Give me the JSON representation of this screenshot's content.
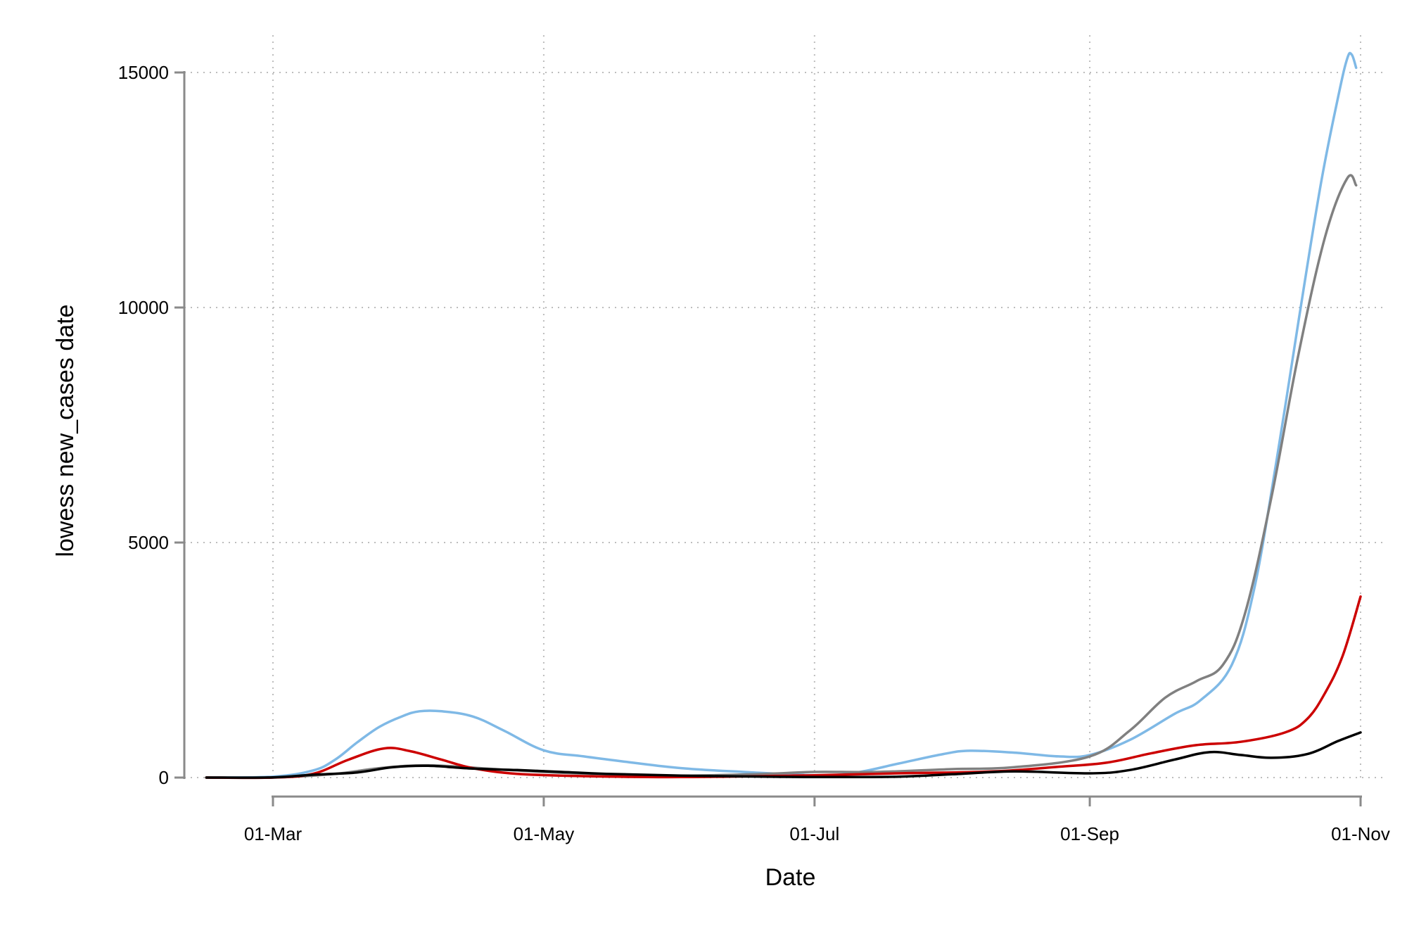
{
  "chart_data": {
    "type": "line",
    "title": "",
    "xlabel": "Date",
    "ylabel": "lowess new_cases date",
    "x_ticks": [
      {
        "date": "2020-03-01",
        "label": "01-Mar"
      },
      {
        "date": "2020-05-01",
        "label": "01-May"
      },
      {
        "date": "2020-07-01",
        "label": "01-Jul"
      },
      {
        "date": "2020-09-01",
        "label": "01-Sep"
      },
      {
        "date": "2020-11-01",
        "label": "01-Nov"
      }
    ],
    "y_ticks": [
      {
        "value": 0,
        "label": "0"
      },
      {
        "value": 5000,
        "label": "5000"
      },
      {
        "value": 10000,
        "label": "10000"
      },
      {
        "value": 15000,
        "label": "15000"
      }
    ],
    "xlim": [
      "2020-02-15",
      "2020-11-01"
    ],
    "ylim": [
      0,
      15000
    ],
    "grid": true,
    "legend": "none",
    "series": [
      {
        "color": "#7fb9e6",
        "points": [
          [
            "2020-02-15",
            0
          ],
          [
            "2020-03-01",
            20
          ],
          [
            "2020-03-10",
            150
          ],
          [
            "2020-03-15",
            380
          ],
          [
            "2020-03-20",
            750
          ],
          [
            "2020-03-25",
            1080
          ],
          [
            "2020-03-30",
            1300
          ],
          [
            "2020-04-03",
            1410
          ],
          [
            "2020-04-08",
            1410
          ],
          [
            "2020-04-15",
            1300
          ],
          [
            "2020-04-22",
            1000
          ],
          [
            "2020-05-01",
            580
          ],
          [
            "2020-05-10",
            450
          ],
          [
            "2020-05-20",
            330
          ],
          [
            "2020-06-01",
            200
          ],
          [
            "2020-06-15",
            120
          ],
          [
            "2020-07-01",
            50
          ],
          [
            "2020-07-10",
            100
          ],
          [
            "2020-07-20",
            300
          ],
          [
            "2020-07-30",
            500
          ],
          [
            "2020-08-05",
            570
          ],
          [
            "2020-08-15",
            530
          ],
          [
            "2020-08-25",
            450
          ],
          [
            "2020-09-01",
            480
          ],
          [
            "2020-09-10",
            800
          ],
          [
            "2020-09-20",
            1350
          ],
          [
            "2020-09-26",
            1650
          ],
          [
            "2020-10-03",
            2400
          ],
          [
            "2020-10-08",
            4000
          ],
          [
            "2020-10-13",
            6700
          ],
          [
            "2020-10-18",
            9700
          ],
          [
            "2020-10-23",
            12600
          ],
          [
            "2020-10-27",
            14500
          ],
          [
            "2020-10-29",
            15300
          ],
          [
            "2020-10-30",
            15380
          ],
          [
            "2020-10-31",
            15100
          ]
        ]
      },
      {
        "color": "#808080",
        "points": [
          [
            "2020-02-15",
            0
          ],
          [
            "2020-03-01",
            0
          ],
          [
            "2020-03-15",
            80
          ],
          [
            "2020-03-25",
            200
          ],
          [
            "2020-04-05",
            260
          ],
          [
            "2020-04-20",
            180
          ],
          [
            "2020-05-01",
            120
          ],
          [
            "2020-05-15",
            70
          ],
          [
            "2020-06-01",
            40
          ],
          [
            "2020-06-20",
            80
          ],
          [
            "2020-07-01",
            120
          ],
          [
            "2020-07-15",
            120
          ],
          [
            "2020-08-01",
            180
          ],
          [
            "2020-08-15",
            220
          ],
          [
            "2020-09-01",
            450
          ],
          [
            "2020-09-10",
            1000
          ],
          [
            "2020-09-18",
            1700
          ],
          [
            "2020-09-25",
            2050
          ],
          [
            "2020-10-01",
            2400
          ],
          [
            "2020-10-06",
            3500
          ],
          [
            "2020-10-12",
            6000
          ],
          [
            "2020-10-18",
            9000
          ],
          [
            "2020-10-24",
            11500
          ],
          [
            "2020-10-29",
            12750
          ],
          [
            "2020-10-31",
            12600
          ]
        ]
      },
      {
        "color": "#cc0000",
        "points": [
          [
            "2020-02-15",
            0
          ],
          [
            "2020-03-01",
            0
          ],
          [
            "2020-03-10",
            80
          ],
          [
            "2020-03-18",
            380
          ],
          [
            "2020-03-26",
            620
          ],
          [
            "2020-04-01",
            560
          ],
          [
            "2020-04-08",
            380
          ],
          [
            "2020-04-15",
            200
          ],
          [
            "2020-04-25",
            80
          ],
          [
            "2020-05-10",
            30
          ],
          [
            "2020-06-01",
            10
          ],
          [
            "2020-07-01",
            50
          ],
          [
            "2020-07-20",
            90
          ],
          [
            "2020-08-10",
            130
          ],
          [
            "2020-08-25",
            230
          ],
          [
            "2020-09-05",
            320
          ],
          [
            "2020-09-15",
            520
          ],
          [
            "2020-09-25",
            690
          ],
          [
            "2020-10-05",
            760
          ],
          [
            "2020-10-15",
            960
          ],
          [
            "2020-10-20",
            1250
          ],
          [
            "2020-10-24",
            1800
          ],
          [
            "2020-10-28",
            2600
          ],
          [
            "2020-11-01",
            3850
          ]
        ]
      },
      {
        "color": "#000000",
        "points": [
          [
            "2020-02-15",
            0
          ],
          [
            "2020-03-01",
            5
          ],
          [
            "2020-03-10",
            60
          ],
          [
            "2020-03-20",
            110
          ],
          [
            "2020-03-28",
            220
          ],
          [
            "2020-04-05",
            250
          ],
          [
            "2020-04-15",
            190
          ],
          [
            "2020-04-25",
            160
          ],
          [
            "2020-05-05",
            120
          ],
          [
            "2020-05-15",
            80
          ],
          [
            "2020-06-01",
            40
          ],
          [
            "2020-06-20",
            20
          ],
          [
            "2020-07-01",
            10
          ],
          [
            "2020-07-20",
            20
          ],
          [
            "2020-08-01",
            70
          ],
          [
            "2020-08-15",
            130
          ],
          [
            "2020-09-01",
            90
          ],
          [
            "2020-09-10",
            160
          ],
          [
            "2020-09-20",
            380
          ],
          [
            "2020-09-28",
            540
          ],
          [
            "2020-10-05",
            480
          ],
          [
            "2020-10-12",
            420
          ],
          [
            "2020-10-20",
            500
          ],
          [
            "2020-10-27",
            780
          ],
          [
            "2020-11-01",
            960
          ]
        ]
      }
    ]
  }
}
